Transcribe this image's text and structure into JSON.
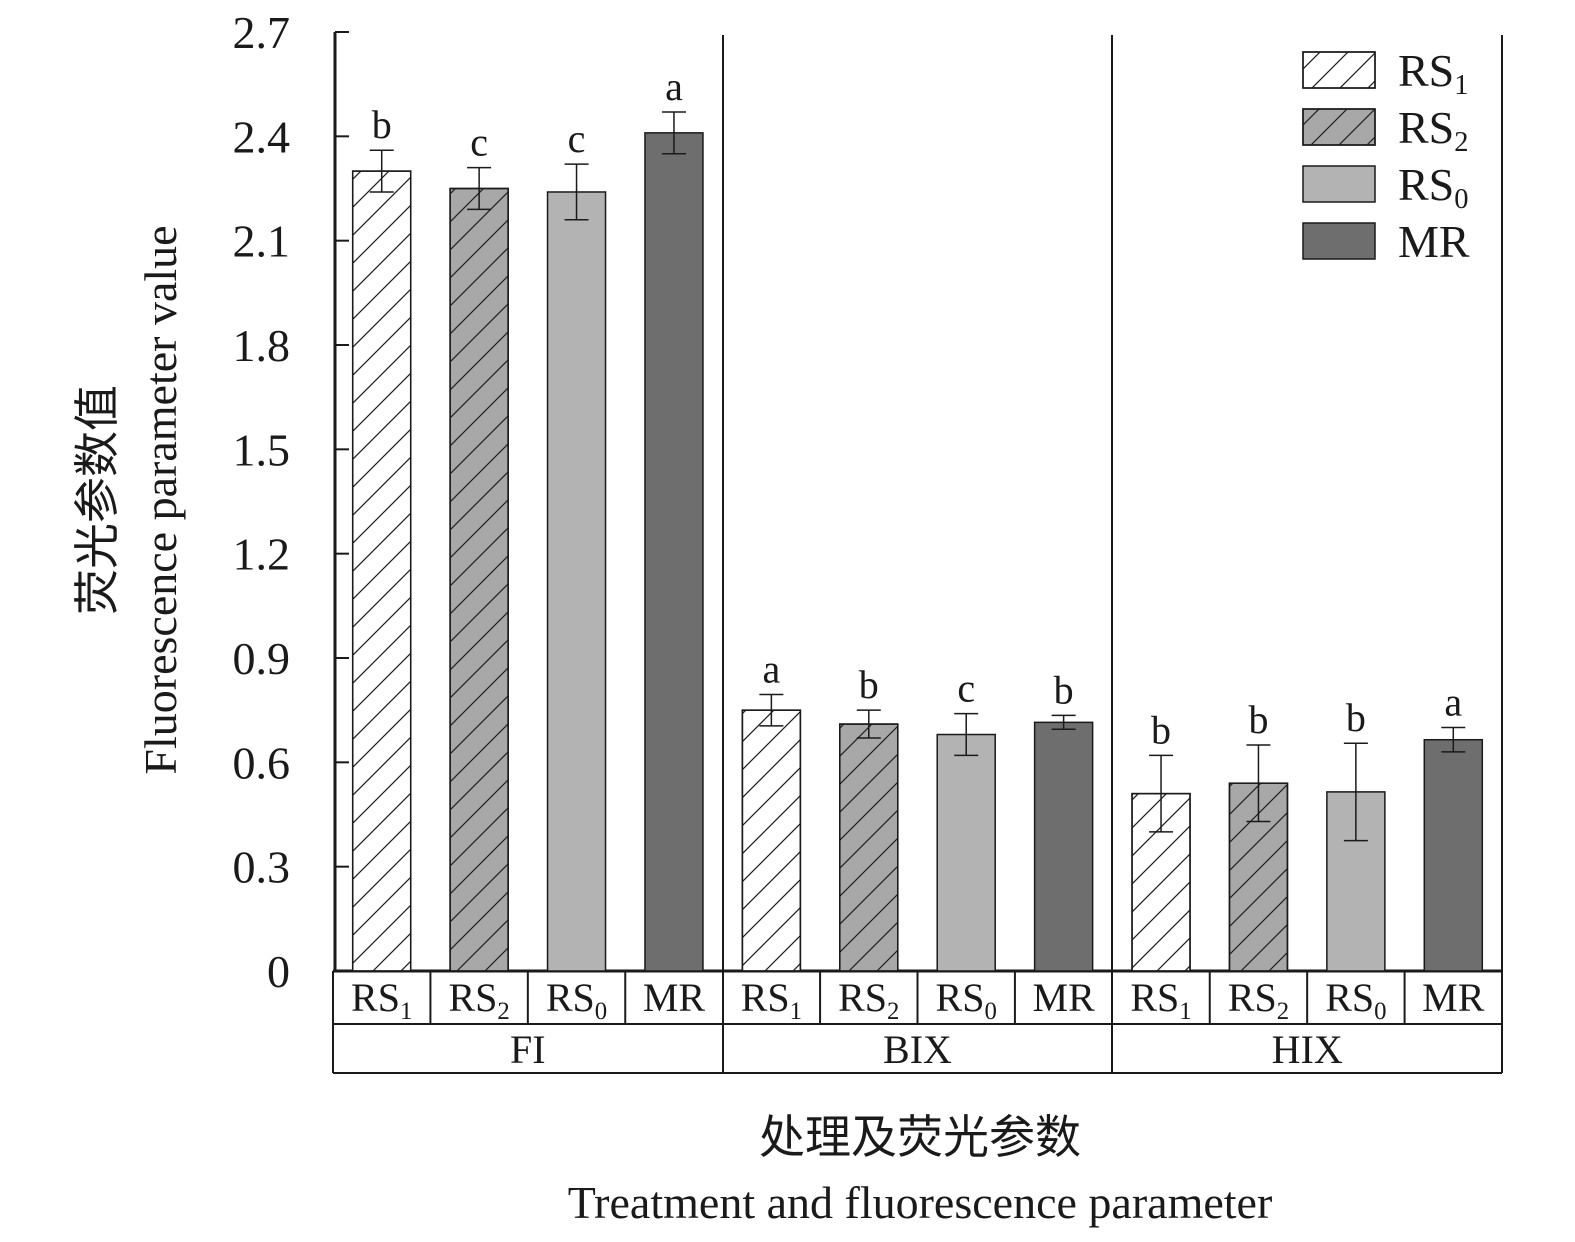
{
  "chart_data": {
    "type": "bar",
    "title": "",
    "ylabel_cn": "荧光参数值",
    "ylabel_en": "Fluorescence parameter value",
    "xlabel_cn": "处理及荧光参数",
    "xlabel_en": "Treatment and fluorescence parameter",
    "ylim": [
      0,
      2.7
    ],
    "yticks": [
      "0",
      "0.3",
      "0.6",
      "0.9",
      "1.2",
      "1.5",
      "1.8",
      "2.1",
      "2.4",
      "2.7"
    ],
    "grid": false,
    "legend_position": "top-right",
    "groups": [
      "FI",
      "BIX",
      "HIX"
    ],
    "series": [
      {
        "name": "RS1",
        "base": "RS",
        "sub": "1",
        "fill": "#ffffff",
        "hatch": true,
        "values": [
          2.3,
          0.75,
          0.51
        ],
        "errors": [
          0.06,
          0.045,
          0.11
        ],
        "letters": [
          "b",
          "a",
          "b"
        ]
      },
      {
        "name": "RS2",
        "base": "RS",
        "sub": "2",
        "fill": "#a8a8a8",
        "hatch": true,
        "values": [
          2.25,
          0.71,
          0.54
        ],
        "errors": [
          0.06,
          0.04,
          0.11
        ],
        "letters": [
          "c",
          "b",
          "b"
        ]
      },
      {
        "name": "RS0",
        "base": "RS",
        "sub": "0",
        "fill": "#b3b3b3",
        "hatch": false,
        "values": [
          2.24,
          0.68,
          0.515
        ],
        "errors": [
          0.08,
          0.06,
          0.14
        ],
        "letters": [
          "c",
          "c",
          "b"
        ]
      },
      {
        "name": "MR",
        "base": "MR",
        "sub": "",
        "fill": "#6e6e6e",
        "hatch": false,
        "values": [
          2.41,
          0.715,
          0.665
        ],
        "errors": [
          0.06,
          0.02,
          0.035
        ],
        "letters": [
          "a",
          "b",
          "a"
        ]
      }
    ]
  }
}
